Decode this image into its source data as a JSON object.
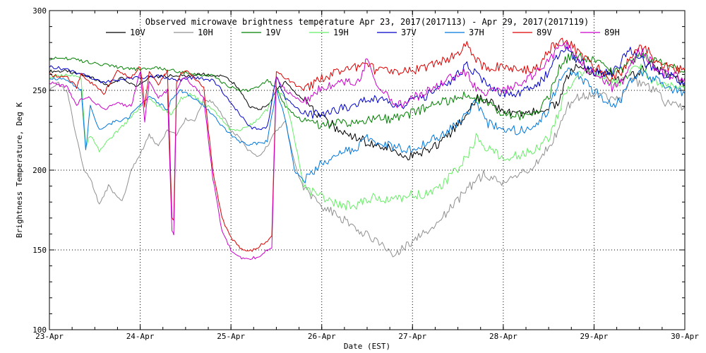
{
  "chart_data": {
    "type": "line",
    "title": "Observed microwave brightness temperature Apr 23, 2017(2017113) - Apr 29, 2017(2017119)",
    "xlabel": "Date (EST)",
    "ylabel": "Brightness Temperature, Deg K",
    "xlim": [
      0,
      7
    ],
    "ylim": [
      100,
      300
    ],
    "yticks": [
      100,
      150,
      200,
      250,
      300
    ],
    "x_tick_labels": [
      "23-Apr",
      "24-Apr",
      "25-Apr",
      "26-Apr",
      "27-Apr",
      "28-Apr",
      "29-Apr",
      "30-Apr"
    ],
    "grid": "dotted",
    "legend_position": "top",
    "series": [
      {
        "name": "10V",
        "color": "#000000",
        "x": [
          0,
          0.2,
          0.35,
          0.5,
          0.65,
          0.8,
          0.95,
          1.1,
          1.3,
          1.5,
          1.7,
          1.9,
          2.0,
          2.1,
          2.2,
          2.3,
          2.4,
          2.5,
          2.6,
          2.8,
          3.0,
          3.2,
          3.4,
          3.6,
          3.8,
          4.0,
          4.2,
          4.4,
          4.6,
          4.7,
          4.8,
          5.0,
          5.2,
          5.4,
          5.5,
          5.6,
          5.7,
          5.8,
          6.0,
          6.2,
          6.3,
          6.4,
          6.5,
          6.6,
          6.7,
          6.8,
          7.0
        ],
        "values": [
          262,
          262,
          260,
          257,
          253,
          258,
          252,
          258,
          259,
          259,
          260,
          259,
          256,
          250,
          240,
          238,
          240,
          250,
          255,
          244,
          233,
          225,
          220,
          215,
          213,
          208,
          213,
          222,
          234,
          245,
          244,
          238,
          235,
          238,
          240,
          242,
          258,
          265,
          262,
          260,
          255,
          258,
          262,
          267,
          263,
          260,
          254
        ]
      },
      {
        "name": "10H",
        "color": "#909090",
        "x": [
          0,
          0.1,
          0.2,
          0.3,
          0.38,
          0.45,
          0.55,
          0.65,
          0.8,
          0.9,
          1.0,
          1.1,
          1.2,
          1.3,
          1.4,
          1.5,
          1.6,
          1.7,
          1.8,
          1.9,
          2.0,
          2.1,
          2.2,
          2.3,
          2.4,
          2.5,
          2.6,
          2.7,
          2.8,
          3.0,
          3.2,
          3.4,
          3.6,
          3.8,
          4.0,
          4.2,
          4.4,
          4.6,
          4.8,
          5.0,
          5.2,
          5.4,
          5.5,
          5.6,
          5.7,
          5.8,
          6.0,
          6.2,
          6.3,
          6.4,
          6.5,
          6.6,
          6.7,
          6.8,
          7.0
        ],
        "values": [
          250,
          255,
          248,
          220,
          200,
          195,
          178,
          190,
          180,
          200,
          210,
          222,
          215,
          225,
          222,
          232,
          230,
          245,
          242,
          235,
          225,
          220,
          212,
          208,
          215,
          225,
          230,
          205,
          188,
          178,
          170,
          163,
          155,
          148,
          155,
          163,
          175,
          188,
          198,
          192,
          198,
          205,
          215,
          225,
          240,
          245,
          248,
          245,
          245,
          255,
          255,
          252,
          248,
          242,
          240
        ]
      },
      {
        "name": "19V",
        "color": "#008000",
        "x": [
          0,
          0.2,
          0.4,
          0.6,
          0.8,
          1.0,
          1.2,
          1.4,
          1.6,
          1.8,
          1.9,
          2.0,
          2.1,
          2.2,
          2.3,
          2.4,
          2.5,
          2.6,
          2.8,
          3.0,
          3.2,
          3.4,
          3.6,
          3.8,
          4.0,
          4.2,
          4.4,
          4.6,
          4.7,
          4.8,
          5.0,
          5.2,
          5.4,
          5.5,
          5.6,
          5.7,
          5.8,
          6.0,
          6.2,
          6.3,
          6.4,
          6.5,
          6.6,
          6.7,
          6.8,
          7.0
        ],
        "values": [
          270,
          270,
          268,
          266,
          264,
          263,
          264,
          262,
          260,
          259,
          255,
          252,
          250,
          250,
          252,
          256,
          252,
          240,
          230,
          228,
          230,
          230,
          232,
          232,
          236,
          240,
          244,
          248,
          245,
          242,
          236,
          234,
          238,
          245,
          262,
          270,
          272,
          268,
          262,
          263,
          268,
          272,
          270,
          268,
          265,
          262
        ]
      },
      {
        "name": "19H",
        "color": "#66ee66",
        "x": [
          0,
          0.2,
          0.35,
          0.4,
          0.45,
          0.55,
          0.7,
          0.85,
          1.0,
          1.1,
          1.2,
          1.35,
          1.45,
          1.55,
          1.7,
          1.85,
          2.0,
          2.1,
          2.2,
          2.3,
          2.4,
          2.5,
          2.6,
          2.7,
          2.8,
          3.0,
          3.2,
          3.4,
          3.5,
          3.6,
          3.8,
          4.0,
          4.2,
          4.4,
          4.6,
          4.7,
          4.8,
          5.0,
          5.2,
          5.4,
          5.5,
          5.6,
          5.7,
          5.8,
          6.0,
          6.2,
          6.3,
          6.4,
          6.5,
          6.6,
          6.7,
          6.8,
          7.0
        ],
        "values": [
          258,
          260,
          258,
          215,
          222,
          212,
          222,
          230,
          240,
          245,
          240,
          235,
          245,
          248,
          242,
          235,
          225,
          225,
          228,
          232,
          238,
          250,
          245,
          220,
          190,
          183,
          178,
          178,
          182,
          183,
          181,
          185,
          185,
          195,
          208,
          220,
          215,
          207,
          210,
          215,
          220,
          235,
          250,
          260,
          262,
          255,
          255,
          262,
          265,
          258,
          255,
          253,
          250
        ]
      },
      {
        "name": "37V",
        "color": "#0000cc",
        "x": [
          0,
          0.2,
          0.4,
          0.6,
          0.8,
          1.0,
          1.2,
          1.3,
          1.4,
          1.6,
          1.8,
          1.9,
          2.0,
          2.1,
          2.2,
          2.3,
          2.4,
          2.5,
          2.6,
          2.8,
          3.0,
          3.2,
          3.4,
          3.6,
          3.8,
          4.0,
          4.2,
          4.4,
          4.6,
          4.7,
          4.8,
          5.0,
          5.2,
          5.4,
          5.5,
          5.6,
          5.7,
          5.8,
          6.0,
          6.2,
          6.3,
          6.4,
          6.5,
          6.6,
          6.7,
          6.8,
          7.0
        ],
        "values": [
          265,
          263,
          259,
          255,
          257,
          258,
          259,
          258,
          256,
          258,
          256,
          250,
          242,
          235,
          227,
          226,
          227,
          259,
          245,
          235,
          235,
          238,
          242,
          245,
          240,
          243,
          248,
          255,
          265,
          260,
          255,
          248,
          248,
          255,
          262,
          272,
          275,
          270,
          262,
          260,
          268,
          275,
          272,
          265,
          262,
          260,
          255
        ]
      },
      {
        "name": "37H",
        "color": "#0077dd",
        "x": [
          0,
          0.2,
          0.35,
          0.4,
          0.45,
          0.55,
          0.7,
          0.85,
          1.0,
          1.1,
          1.2,
          1.3,
          1.35,
          1.45,
          1.6,
          1.8,
          1.9,
          2.0,
          2.1,
          2.2,
          2.3,
          2.4,
          2.5,
          2.6,
          2.7,
          2.8,
          3.0,
          3.2,
          3.4,
          3.5,
          3.6,
          3.8,
          4.0,
          4.2,
          4.4,
          4.6,
          4.7,
          4.8,
          5.0,
          5.2,
          5.4,
          5.5,
          5.6,
          5.7,
          5.8,
          6.0,
          6.2,
          6.3,
          6.4,
          6.5,
          6.6,
          6.7,
          6.8,
          7.0
        ],
        "values": [
          258,
          256,
          250,
          212,
          240,
          225,
          230,
          232,
          240,
          246,
          242,
          238,
          245,
          250,
          245,
          235,
          228,
          222,
          218,
          216,
          217,
          218,
          250,
          232,
          200,
          193,
          205,
          210,
          215,
          220,
          218,
          215,
          212,
          218,
          225,
          235,
          245,
          230,
          225,
          225,
          230,
          238,
          255,
          262,
          260,
          250,
          240,
          245,
          255,
          262,
          258,
          256,
          252,
          248
        ]
      },
      {
        "name": "89V",
        "color": "#dd0000",
        "x": [
          0,
          0.2,
          0.3,
          0.35,
          0.45,
          0.6,
          0.75,
          0.9,
          1.0,
          1.05,
          1.1,
          1.2,
          1.3,
          1.35,
          1.37,
          1.4,
          1.45,
          1.5,
          1.6,
          1.7,
          1.8,
          1.9,
          2.0,
          2.1,
          2.2,
          2.3,
          2.4,
          2.45,
          2.5,
          2.6,
          2.8,
          3.0,
          3.2,
          3.4,
          3.5,
          3.6,
          3.8,
          4.0,
          4.2,
          4.4,
          4.6,
          4.7,
          4.8,
          5.0,
          5.2,
          5.4,
          5.5,
          5.6,
          5.7,
          5.8,
          6.0,
          6.2,
          6.3,
          6.4,
          6.5,
          6.6,
          6.7,
          6.8,
          7.0
        ],
        "values": [
          260,
          258,
          252,
          260,
          255,
          248,
          262,
          258,
          265,
          240,
          262,
          254,
          262,
          170,
          168,
          255,
          260,
          262,
          258,
          252,
          200,
          170,
          158,
          151,
          149,
          152,
          155,
          158,
          262,
          258,
          250,
          258,
          262,
          265,
          268,
          262,
          262,
          262,
          265,
          270,
          278,
          270,
          264,
          265,
          262,
          265,
          275,
          280,
          282,
          275,
          265,
          258,
          262,
          270,
          278,
          275,
          265,
          265,
          262
        ]
      },
      {
        "name": "89H",
        "color": "#cc00cc",
        "x": [
          0,
          0.2,
          0.3,
          0.35,
          0.45,
          0.6,
          0.75,
          0.9,
          1.0,
          1.05,
          1.1,
          1.2,
          1.3,
          1.35,
          1.37,
          1.4,
          1.45,
          1.5,
          1.6,
          1.7,
          1.8,
          1.9,
          2.0,
          2.1,
          2.2,
          2.3,
          2.4,
          2.45,
          2.5,
          2.6,
          2.8,
          3.0,
          3.2,
          3.4,
          3.5,
          3.6,
          3.8,
          4.0,
          4.2,
          4.4,
          4.6,
          4.7,
          4.8,
          5.0,
          5.2,
          5.4,
          5.5,
          5.6,
          5.7,
          5.8,
          6.0,
          6.2,
          6.3,
          6.4,
          6.5,
          6.6,
          6.7,
          6.8,
          7.0
        ],
        "values": [
          255,
          252,
          240,
          245,
          245,
          238,
          242,
          240,
          262,
          230,
          255,
          245,
          250,
          162,
          160,
          250,
          256,
          258,
          252,
          245,
          195,
          162,
          150,
          145,
          144,
          146,
          150,
          152,
          258,
          250,
          242,
          252,
          255,
          255,
          270,
          255,
          240,
          245,
          250,
          258,
          262,
          250,
          248,
          250,
          255,
          262,
          268,
          275,
          278,
          270,
          260,
          252,
          255,
          265,
          275,
          270,
          262,
          260,
          258
        ]
      }
    ]
  }
}
